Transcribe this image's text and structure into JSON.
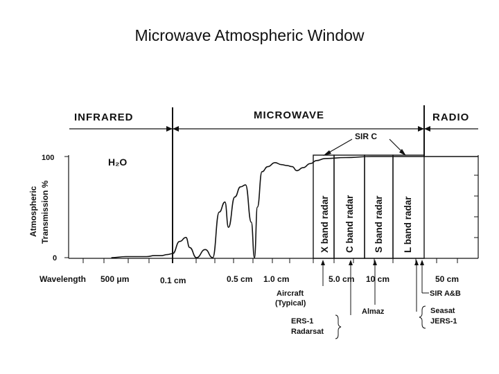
{
  "page": {
    "title": "Microwave Atmospheric Window"
  },
  "chart_data": {
    "type": "line",
    "ylabel_line1": "Atmospheric",
    "ylabel_line2": "Transmission %",
    "y_ticks": [
      "100",
      "0"
    ],
    "ylim": [
      0,
      100
    ],
    "x_prefix": "Wavelength",
    "x_ticks": [
      "500 μm",
      "0.1 cm",
      "0.5 cm",
      "1.0 cm",
      "5.0 cm",
      "10 cm",
      "50 cm"
    ],
    "x_tick_values_cm": [
      0.05,
      0.1,
      0.5,
      1.0,
      5.0,
      10,
      50
    ],
    "x_scale": "log",
    "regions": [
      "INFRARED",
      "MICROWAVE",
      "RADIO"
    ],
    "molecule_label": "H₂O",
    "series": [
      {
        "x": [
          0.03,
          0.04,
          0.05,
          0.06,
          0.07,
          0.08,
          0.09,
          0.1,
          0.115,
          0.13,
          0.14,
          0.16,
          0.19,
          0.22,
          0.25,
          0.28,
          0.3,
          0.34,
          0.38,
          0.42,
          0.47,
          0.5,
          0.53,
          0.58,
          0.65,
          0.75,
          0.85,
          0.95,
          1.05,
          1.15,
          1.3,
          1.5,
          1.7,
          2.0,
          3.0,
          5.0,
          10,
          20,
          50,
          100
        ],
        "y": [
          0,
          1,
          1,
          1,
          2,
          2,
          3,
          4,
          16,
          20,
          10,
          0,
          8,
          0,
          45,
          55,
          30,
          60,
          70,
          72,
          35,
          0,
          50,
          85,
          90,
          94,
          92,
          91,
          90,
          86,
          89,
          93,
          96,
          98,
          99,
          100,
          100,
          100,
          100,
          100
        ]
      }
    ],
    "bands": [
      "X band radar",
      "C band radar",
      "S band radar",
      "L band radar"
    ],
    "annotations": {
      "sir_c": "SIR C",
      "sir_ab": "SIR A&B",
      "aircraft_1": "Aircraft",
      "aircraft_2": "(Typical)",
      "almaz": "Almaz",
      "ers1": "ERS-1",
      "radarsat": "Radarsat",
      "seasat": "Seasat",
      "jers1": "JERS-1"
    }
  }
}
